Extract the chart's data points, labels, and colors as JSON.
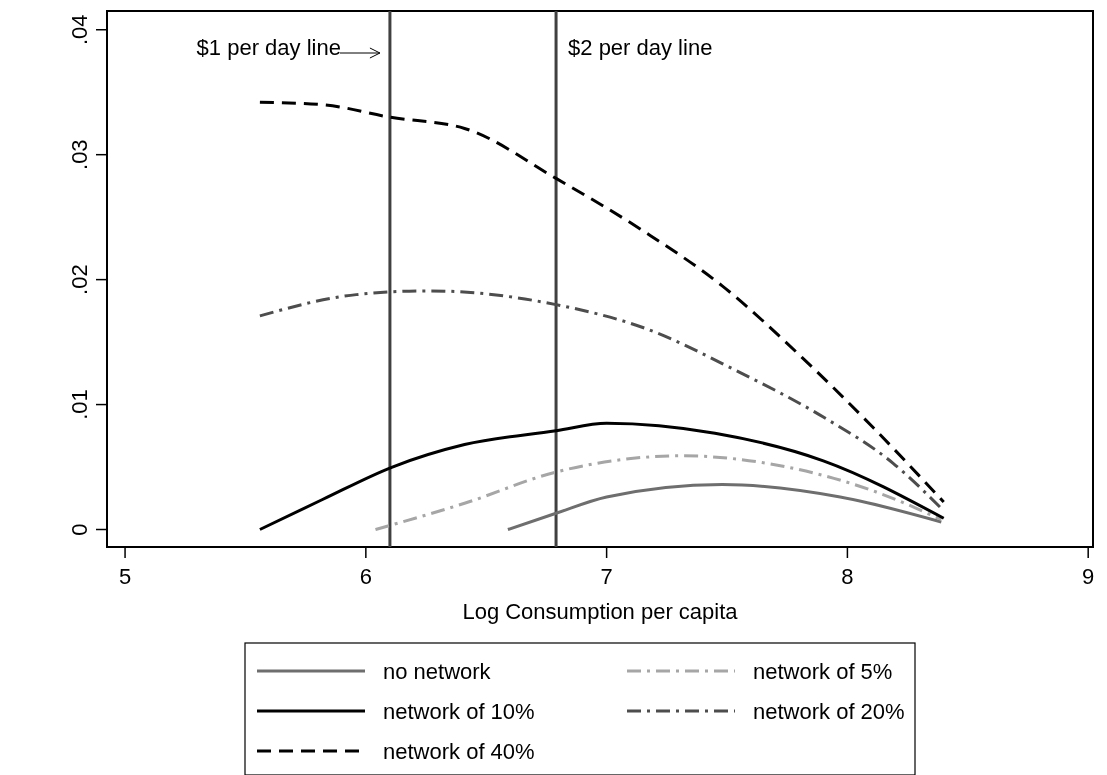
{
  "chart_data": {
    "type": "line",
    "xlabel": "Log Consumption per capita",
    "xlim": [
      4.925,
      9.02
    ],
    "xticks": [
      5,
      6,
      7,
      8,
      9
    ],
    "ylim": [
      -0.0014,
      0.0415
    ],
    "yticks": [
      {
        "value": 0,
        "label": "0"
      },
      {
        "value": 0.01,
        "label": ".01"
      },
      {
        "value": 0.02,
        "label": ".02"
      },
      {
        "value": 0.03,
        "label": ".03"
      },
      {
        "value": 0.04,
        "label": ".04"
      }
    ],
    "grid": false,
    "legend": "bottom",
    "marker": "none",
    "ref_lines": [
      {
        "axis": "x",
        "value": 6.1,
        "label": "$1 per day line",
        "color": "#404040"
      },
      {
        "axis": "x",
        "value": 6.79,
        "label": "$2 per day line",
        "color": "#404040"
      }
    ],
    "series": [
      {
        "name": "no network",
        "color": "#6e6e6e",
        "line_style": "solid",
        "x": [
          6.59,
          6.79,
          7.0,
          7.48,
          7.97,
          8.39
        ],
        "values": [
          0,
          0.0013,
          0.0026,
          0.0036,
          0.0026,
          0.0006
        ]
      },
      {
        "name": "network of 5%",
        "color": "#a6a6a6",
        "line_style": "dashdot",
        "x": [
          6.04,
          6.41,
          6.79,
          7.31,
          7.75,
          8.12,
          8.39
        ],
        "values": [
          0,
          0.0021,
          0.0046,
          0.0059,
          0.005,
          0.003,
          0.0008
        ]
      },
      {
        "name": "network of 10%",
        "color": "#000000",
        "line_style": "solid",
        "x": [
          5.56,
          5.82,
          6.11,
          6.41,
          6.79,
          7.0,
          7.45,
          7.9,
          8.4
        ],
        "values": [
          0,
          0.0024,
          0.005,
          0.0068,
          0.0079,
          0.0085,
          0.0077,
          0.0055,
          0.0009
        ]
      },
      {
        "name": "network of 20%",
        "color": "#4d4d4d",
        "line_style": "dashdot",
        "x": [
          5.56,
          5.96,
          6.26,
          6.79,
          7.16,
          7.54,
          7.9,
          8.19,
          8.4
        ],
        "values": [
          0.0171,
          0.0188,
          0.0191,
          0.018,
          0.0161,
          0.0127,
          0.009,
          0.0053,
          0.0015
        ]
      },
      {
        "name": "network of 40%",
        "color": "#000000",
        "line_style": "dashed",
        "x": [
          5.56,
          5.82,
          6.1,
          6.41,
          6.79,
          7.16,
          7.48,
          7.81,
          8.11,
          8.4
        ],
        "values": [
          0.0342,
          0.034,
          0.033,
          0.0321,
          0.0281,
          0.0238,
          0.0195,
          0.0138,
          0.0081,
          0.0022
        ]
      }
    ]
  }
}
